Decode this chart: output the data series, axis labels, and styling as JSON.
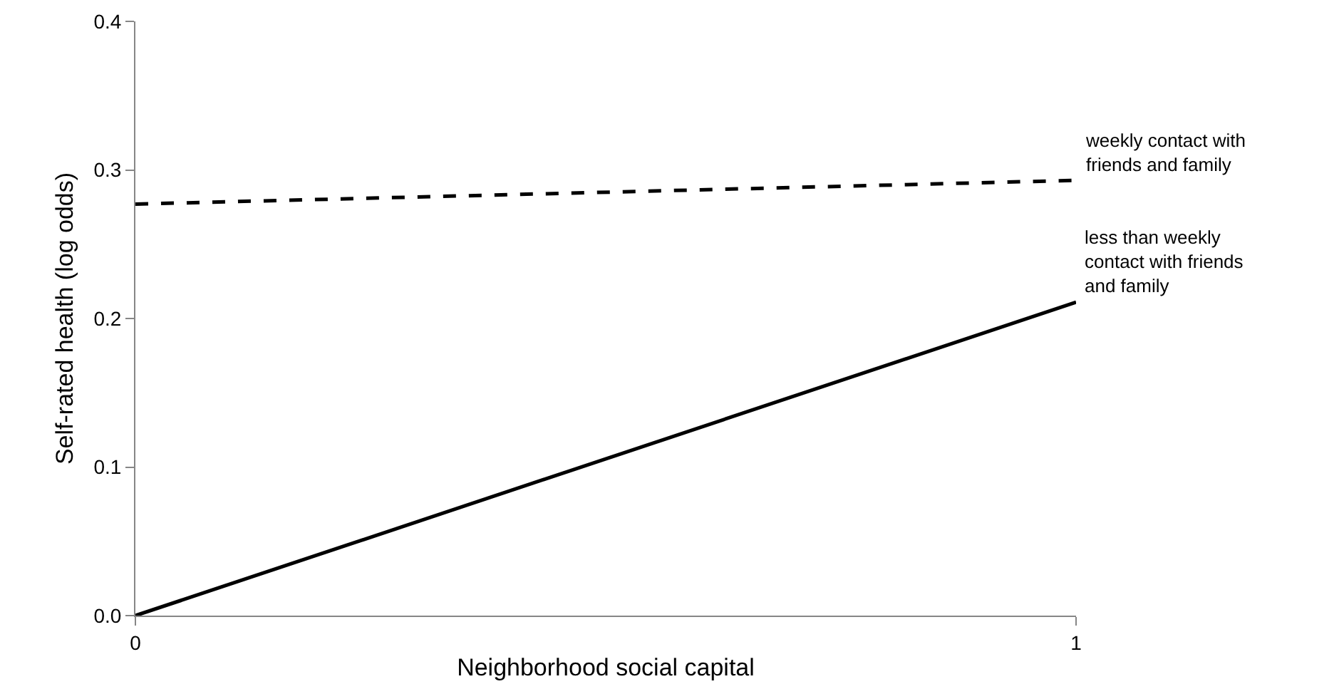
{
  "chart_data": {
    "type": "line",
    "xlabel": "Neighborhood social capital",
    "ylabel": "Self-rated health (log odds)",
    "x": [
      0,
      1
    ],
    "series": [
      {
        "name": "weekly contact with friends and family",
        "color": "#000000",
        "values": [
          0.277,
          0.293
        ],
        "line_style": "dashed"
      },
      {
        "name": "less than weekly contact with friends and family",
        "color": "#000000",
        "values": [
          0,
          0.211
        ],
        "line_style": "solid"
      }
    ],
    "xlim": [
      0,
      1
    ],
    "xticks": [
      0,
      1
    ],
    "ylim": [
      0,
      0.4
    ],
    "yticks": [
      {
        "value": 0,
        "label": "0.0"
      },
      0.1,
      0.2,
      0.3,
      0.4
    ],
    "grid": false,
    "legend": false,
    "marker": "none"
  }
}
